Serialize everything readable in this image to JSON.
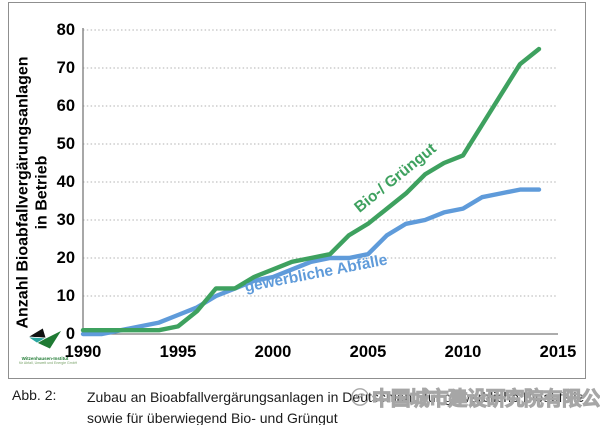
{
  "figure": {
    "y_axis_title_line1": "Anzahl Bioabfallvergärungsanlagen",
    "y_axis_title_line2": "in Betrieb",
    "logo": {
      "line1": "Witzenhausen-Institut",
      "line2": "für Abfall, Umwelt und Energie GmbH"
    }
  },
  "caption": {
    "label": "Abb. 2:",
    "line1": "Zubau an Bioabfallvergärungsanlagen in Deutschland für gewerbliche Bioabfälle",
    "line2": "sowie für überwiegend Bio- und Grüngut"
  },
  "watermark": {
    "text": "中国城市建设研究院有限公司"
  },
  "chart_data": {
    "type": "line",
    "title": "",
    "xlabel": "",
    "ylabel": "Anzahl Bioabfallvergärungsanlagen in Betrieb",
    "x": [
      1990,
      1991,
      1992,
      1993,
      1994,
      1995,
      1996,
      1997,
      1998,
      1999,
      2000,
      2001,
      2002,
      2003,
      2004,
      2005,
      2006,
      2007,
      2008,
      2009,
      2010,
      2011,
      2012,
      2013,
      2014
    ],
    "series": [
      {
        "name": "gewerbliche Abfälle",
        "label": "gewerbliche Abfälle",
        "color": "#5F9BDA",
        "values": [
          0,
          0,
          1,
          2,
          3,
          5,
          7,
          10,
          12,
          14,
          15,
          17,
          19,
          20,
          20,
          21,
          26,
          29,
          30,
          32,
          33,
          36,
          37,
          38,
          38
        ]
      },
      {
        "name": "Bio- / Grüngut",
        "label": "Bio-/ Grüngut",
        "color": "#3EA15F",
        "values": [
          1,
          1,
          1,
          1,
          1,
          2,
          6,
          12,
          12,
          15,
          17,
          19,
          20,
          21,
          26,
          29,
          33,
          37,
          42,
          45,
          47,
          55,
          63,
          71,
          75
        ]
      }
    ],
    "xlim": [
      1990,
      2015
    ],
    "ylim": [
      0,
      80
    ],
    "xticks": [
      1990,
      1995,
      2000,
      2005,
      2010,
      2015
    ],
    "yticks": [
      0,
      10,
      20,
      30,
      40,
      50,
      60,
      70,
      80
    ],
    "grid": "horizontal-dotted",
    "legend_position": "inline-labels"
  },
  "colors": {
    "grid": "#b2b2b2",
    "axis": "#7a7a7a",
    "figure_border": "#8f8f8f",
    "watermark": "#a6a6a6"
  }
}
